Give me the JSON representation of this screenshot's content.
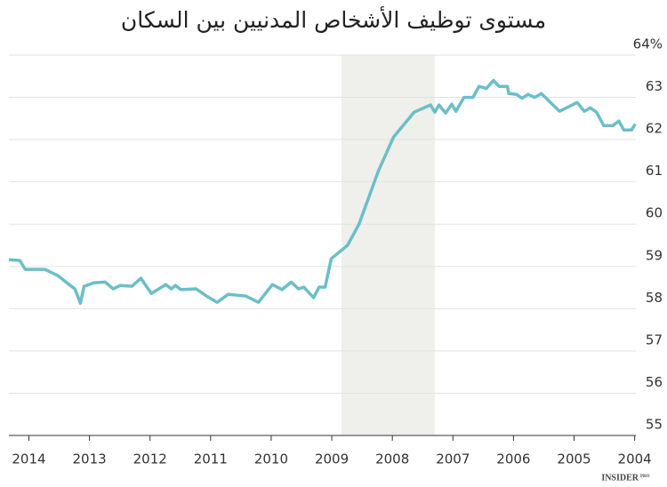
{
  "chart_data": {
    "type": "line",
    "title": "مستوى توظيف الأشخاص المدنيين بين السكان",
    "brand": "INSIDER",
    "brand_sub": "PRO",
    "xlim": [
      2014.33,
      2003.98
    ],
    "xticks": [
      2014,
      2013,
      2012,
      2011,
      2010,
      2009,
      2008,
      2007,
      2006,
      2005,
      2004
    ],
    "ylim": [
      55,
      64
    ],
    "yticks": [
      55,
      56,
      57,
      58,
      59,
      60,
      61,
      62,
      63,
      {
        "value": 64,
        "label": "64%"
      }
    ],
    "grid": true,
    "shade": [
      2008.84,
      2007.3
    ],
    "shade_color": "#efefeb",
    "x": [
      2014.33,
      2014.15,
      2014.06,
      2013.74,
      2013.52,
      2013.3,
      2013.24,
      2013.15,
      2013.09,
      2012.93,
      2012.74,
      2012.61,
      2012.49,
      2012.3,
      2012.15,
      2011.98,
      2011.74,
      2011.65,
      2011.58,
      2011.49,
      2011.24,
      2011.07,
      2010.89,
      2010.71,
      2010.42,
      2010.21,
      2009.98,
      2009.82,
      2009.67,
      2009.55,
      2009.46,
      2009.3,
      2009.21,
      2009.11,
      2009.01,
      2008.74,
      2008.55,
      2008.23,
      2007.98,
      2007.64,
      2007.37,
      2007.3,
      2007.23,
      2007.12,
      2007.02,
      2006.95,
      2006.82,
      2006.67,
      2006.57,
      2006.45,
      2006.33,
      2006.24,
      2006.1,
      2006.08,
      2005.95,
      2005.86,
      2005.76,
      2005.65,
      2005.54,
      2005.24,
      2004.95,
      2004.83,
      2004.73,
      2004.63,
      2004.51,
      2004.36,
      2004.26,
      2004.18,
      2004.05,
      2003.99
    ],
    "series": [
      {
        "color": "#6bbfc7",
        "values": [
          59.16,
          59.14,
          58.93,
          58.93,
          58.78,
          58.53,
          58.47,
          58.13,
          58.53,
          58.61,
          58.63,
          58.47,
          58.55,
          58.53,
          58.72,
          58.36,
          58.57,
          58.47,
          58.55,
          58.45,
          58.47,
          58.3,
          58.15,
          58.34,
          58.3,
          58.15,
          58.57,
          58.45,
          58.63,
          58.47,
          58.51,
          58.26,
          58.51,
          58.51,
          59.18,
          59.5,
          60.0,
          61.26,
          62.06,
          62.65,
          62.82,
          62.65,
          62.82,
          62.63,
          62.84,
          62.67,
          63.0,
          63.0,
          63.26,
          63.21,
          63.4,
          63.26,
          63.26,
          63.09,
          63.07,
          62.98,
          63.07,
          63.0,
          63.09,
          62.67,
          62.88,
          62.67,
          62.75,
          62.65,
          62.33,
          62.33,
          62.44,
          62.23,
          62.23,
          62.37
        ]
      }
    ]
  }
}
